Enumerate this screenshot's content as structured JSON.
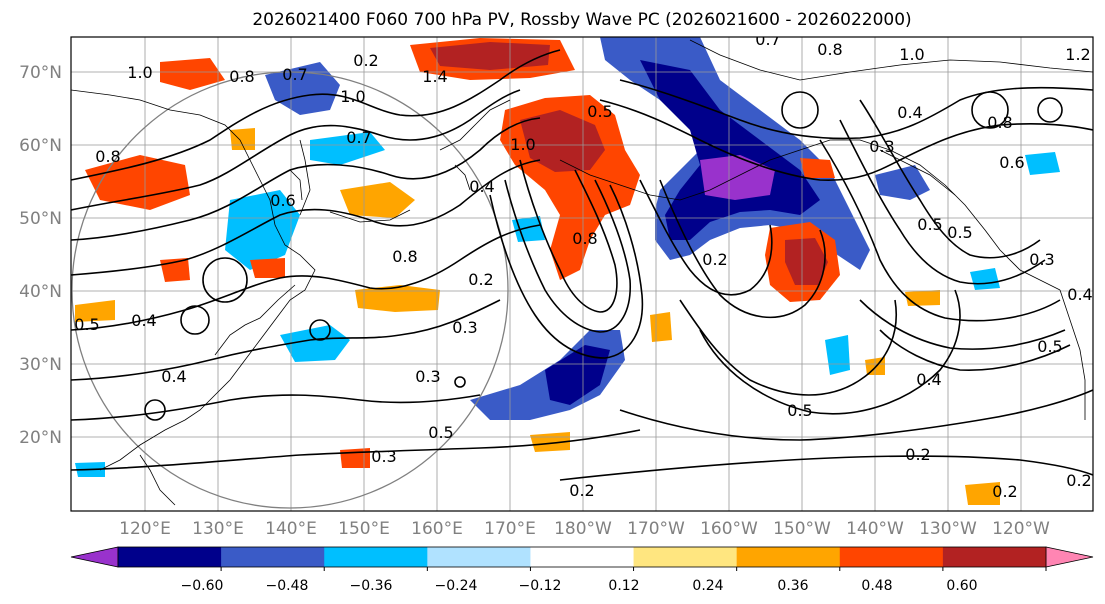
{
  "title": "2026021400 F060 700 hPa PV, Rossby Wave PC (2026021600 - 2026022000)",
  "lat_labels": [
    "70°N",
    "60°N",
    "50°N",
    "40°N",
    "30°N",
    "20°N"
  ],
  "lon_labels": [
    "120°E",
    "130°E",
    "140°E",
    "150°E",
    "160°E",
    "170°E",
    "180°W",
    "170°W",
    "160°W",
    "150°W",
    "140°W",
    "130°W",
    "120°W"
  ],
  "colorbar": {
    "ticks": [
      "−0.60",
      "−0.48",
      "−0.36",
      "−0.24",
      "−0.12",
      "0.12",
      "0.24",
      "0.36",
      "0.48",
      "0.60"
    ],
    "colors": [
      "#9932cc",
      "#00008b",
      "#3a5bc7",
      "#00bfff",
      "#b0e2ff",
      "#ffffff",
      "#ffe680",
      "#ffa500",
      "#ff4500",
      "#b22222",
      "#ff85b3"
    ]
  },
  "contour_labels": [
    "1.0",
    "0.8",
    "0.7",
    "0.2",
    "1.0",
    "1.4",
    "0.5",
    "0.7",
    "0.8",
    "1.0",
    "1.2",
    "0.4",
    "0.8",
    "0.6",
    "0.8",
    "0.6",
    "0.4",
    "0.8",
    "1.0",
    "0.5",
    "0.8",
    "0.2",
    "0.5",
    "0.3",
    "0.5",
    "0.4",
    "0.4",
    "0.3",
    "0.3",
    "0.2",
    "0.5",
    "0.3",
    "0.5",
    "0.4",
    "0.2",
    "0.2",
    "0.2",
    "0.2",
    "0.7",
    "0.4",
    "0.3"
  ],
  "colors": {
    "contour": "#000000",
    "grid": "#999999",
    "coast": "#000000"
  }
}
